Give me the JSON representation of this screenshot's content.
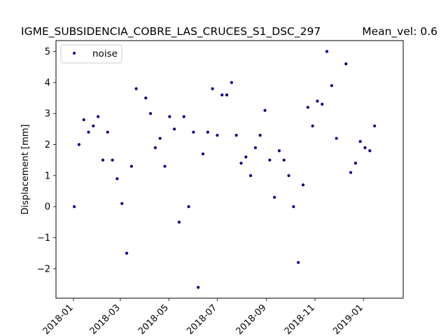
{
  "chart_data": {
    "type": "scatter",
    "title": "IGME_SUBSIDENCIA_COBRE_LAS_CRUCES_S1_DSC_297",
    "title_right": "Mean_vel: 0.6",
    "xlabel": "",
    "ylabel": "Displacement [mm]",
    "xlim": [
      "2017-12-10",
      "2019-02-20"
    ],
    "ylim": [
      -2.95,
      5.35
    ],
    "x_ticks": [
      "2018-01",
      "2018-03",
      "2018-05",
      "2018-07",
      "2018-09",
      "2018-11",
      "2019-01"
    ],
    "y_ticks": [
      -2,
      -1,
      0,
      1,
      2,
      3,
      4,
      5
    ],
    "grid": false,
    "legend_position": "upper-left",
    "series": [
      {
        "name": "noise",
        "color": "#000080",
        "marker": "dot",
        "points": [
          {
            "x": "2018-01-02",
            "y": 0.0
          },
          {
            "x": "2018-01-08",
            "y": 2.0
          },
          {
            "x": "2018-01-14",
            "y": 2.8
          },
          {
            "x": "2018-01-20",
            "y": 2.4
          },
          {
            "x": "2018-01-26",
            "y": 2.6
          },
          {
            "x": "2018-02-01",
            "y": 2.9
          },
          {
            "x": "2018-02-07",
            "y": 1.5
          },
          {
            "x": "2018-02-13",
            "y": 2.4
          },
          {
            "x": "2018-02-19",
            "y": 1.5
          },
          {
            "x": "2018-02-25",
            "y": 0.9
          },
          {
            "x": "2018-03-03",
            "y": 0.1
          },
          {
            "x": "2018-03-09",
            "y": -1.5
          },
          {
            "x": "2018-03-15",
            "y": 1.3
          },
          {
            "x": "2018-03-21",
            "y": 3.8
          },
          {
            "x": "2018-04-02",
            "y": 3.5
          },
          {
            "x": "2018-04-08",
            "y": 3.0
          },
          {
            "x": "2018-04-14",
            "y": 1.9
          },
          {
            "x": "2018-04-20",
            "y": 2.2
          },
          {
            "x": "2018-04-26",
            "y": 1.3
          },
          {
            "x": "2018-05-02",
            "y": 2.9
          },
          {
            "x": "2018-05-08",
            "y": 2.5
          },
          {
            "x": "2018-05-14",
            "y": -0.5
          },
          {
            "x": "2018-05-20",
            "y": 2.9
          },
          {
            "x": "2018-05-26",
            "y": 0.0
          },
          {
            "x": "2018-06-01",
            "y": 2.4
          },
          {
            "x": "2018-06-07",
            "y": -2.6
          },
          {
            "x": "2018-06-13",
            "y": 1.7
          },
          {
            "x": "2018-06-19",
            "y": 2.4
          },
          {
            "x": "2018-06-25",
            "y": 3.8
          },
          {
            "x": "2018-07-01",
            "y": 2.3
          },
          {
            "x": "2018-07-07",
            "y": 3.6
          },
          {
            "x": "2018-07-13",
            "y": 3.6
          },
          {
            "x": "2018-07-19",
            "y": 4.0
          },
          {
            "x": "2018-07-25",
            "y": 2.3
          },
          {
            "x": "2018-07-31",
            "y": 1.4
          },
          {
            "x": "2018-08-06",
            "y": 1.6
          },
          {
            "x": "2018-08-12",
            "y": 1.0
          },
          {
            "x": "2018-08-18",
            "y": 1.9
          },
          {
            "x": "2018-08-24",
            "y": 2.3
          },
          {
            "x": "2018-08-30",
            "y": 3.1
          },
          {
            "x": "2018-09-05",
            "y": 1.5
          },
          {
            "x": "2018-09-11",
            "y": 0.3
          },
          {
            "x": "2018-09-17",
            "y": 1.8
          },
          {
            "x": "2018-09-23",
            "y": 1.5
          },
          {
            "x": "2018-09-29",
            "y": 1.0
          },
          {
            "x": "2018-10-05",
            "y": 0.0
          },
          {
            "x": "2018-10-11",
            "y": -1.8
          },
          {
            "x": "2018-10-17",
            "y": 0.7
          },
          {
            "x": "2018-10-23",
            "y": 3.2
          },
          {
            "x": "2018-10-29",
            "y": 2.6
          },
          {
            "x": "2018-11-04",
            "y": 3.4
          },
          {
            "x": "2018-11-10",
            "y": 3.3
          },
          {
            "x": "2018-11-16",
            "y": 5.0
          },
          {
            "x": "2018-11-22",
            "y": 3.9
          },
          {
            "x": "2018-11-28",
            "y": 2.2
          },
          {
            "x": "2018-12-10",
            "y": 4.6
          },
          {
            "x": "2018-12-16",
            "y": 1.1
          },
          {
            "x": "2018-12-22",
            "y": 1.4
          },
          {
            "x": "2018-12-28",
            "y": 2.1
          },
          {
            "x": "2019-01-03",
            "y": 1.9
          },
          {
            "x": "2019-01-09",
            "y": 1.8
          },
          {
            "x": "2019-01-15",
            "y": 2.6
          }
        ]
      }
    ]
  }
}
